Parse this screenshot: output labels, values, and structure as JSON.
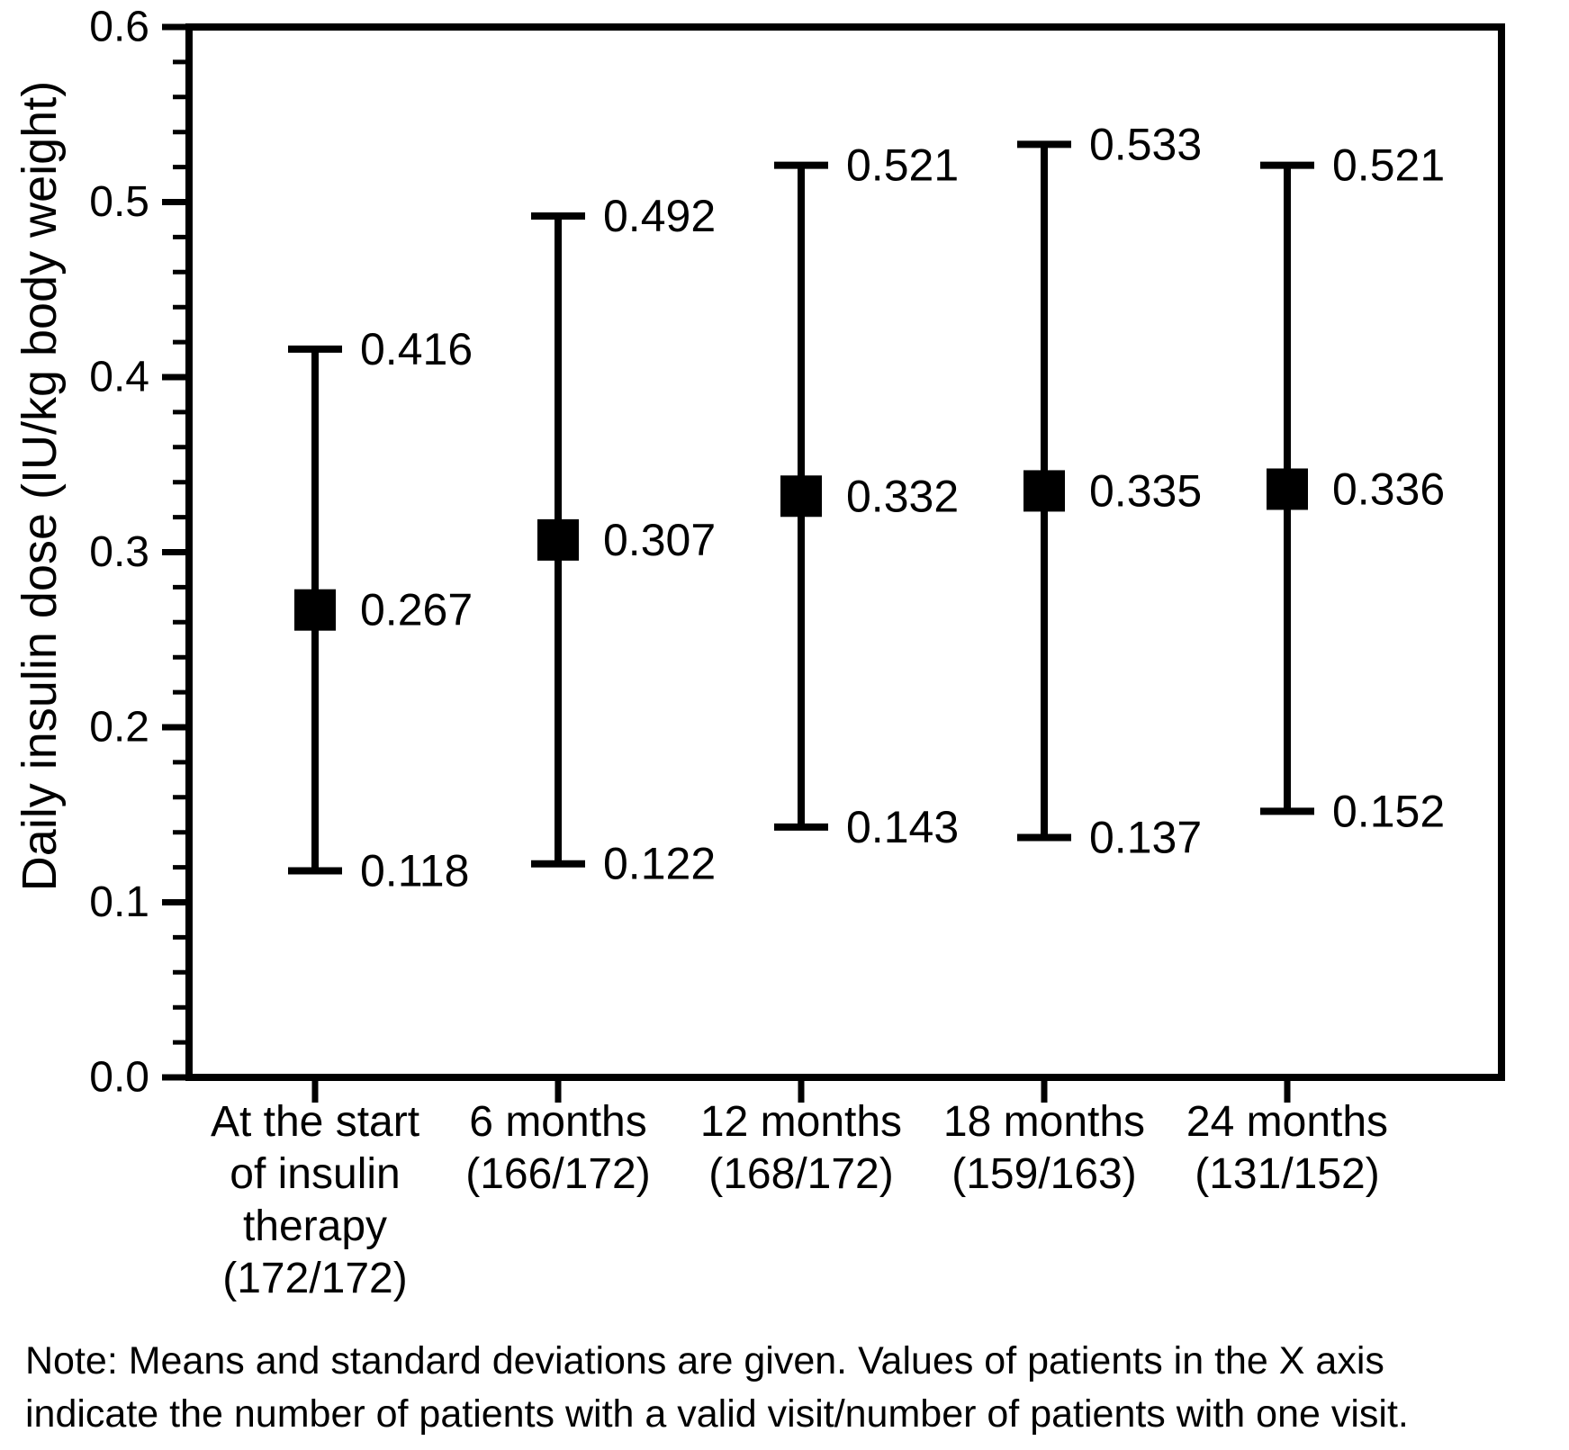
{
  "figure": {
    "background_color": "#ffffff",
    "ink_color": "#000000"
  },
  "note": {
    "line1": "Note: Means and standard deviations are given. Values of patients in the X axis",
    "line2": "indicate the number of patients with a valid visit/number of patients with one visit."
  },
  "chart_data": {
    "type": "scatter",
    "subtype": "mean-with-sd-error-bars",
    "title": "",
    "xlabel": "",
    "ylabel": "Daily insulin dose (IU/kg body weight)",
    "ylim": [
      0.0,
      0.6
    ],
    "y_major_tick_step": 0.1,
    "y_minor_tick_step": 0.02,
    "y_tick_decimals": 1,
    "value_label_decimals": 3,
    "grid": false,
    "legend": false,
    "marker": "filled-square",
    "marker_color": "#000000",
    "categories": [
      {
        "label": "At the start of insulin therapy (172/172)",
        "label_lines": [
          "At the start",
          "of insulin",
          "therapy",
          "(172/172)"
        ]
      },
      {
        "label": "6 months (166/172)",
        "label_lines": [
          "6 months",
          "(166/172)"
        ]
      },
      {
        "label": "12 months (168/172)",
        "label_lines": [
          "12 months",
          "(168/172)"
        ]
      },
      {
        "label": "18 months (159/163)",
        "label_lines": [
          "18 months",
          "(159/163)"
        ]
      },
      {
        "label": "24 months (131/152)",
        "label_lines": [
          "24 months",
          "(131/152)"
        ]
      }
    ],
    "series": [
      {
        "name": "Mean",
        "values": [
          0.267,
          0.307,
          0.332,
          0.335,
          0.336
        ]
      },
      {
        "name": "Mean plus SD",
        "values": [
          0.416,
          0.492,
          0.521,
          0.533,
          0.521
        ]
      },
      {
        "name": "Mean minus SD",
        "values": [
          0.118,
          0.122,
          0.143,
          0.137,
          0.152
        ]
      }
    ]
  }
}
